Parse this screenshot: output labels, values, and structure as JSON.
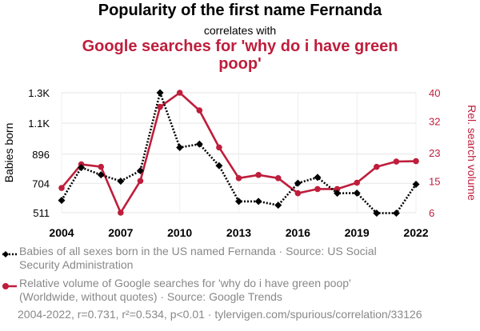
{
  "chart_data": {
    "type": "line",
    "title": "Popularity of the first name Fernanda",
    "subtitle": "correlates with",
    "title2": "Google searches for 'why do i have green poop'",
    "x": [
      2004,
      2005,
      2006,
      2007,
      2008,
      2009,
      2010,
      2011,
      2012,
      2013,
      2014,
      2015,
      2016,
      2017,
      2018,
      2019,
      2020,
      2021,
      2022
    ],
    "x_ticks": [
      "2004",
      "2007",
      "2010",
      "2013",
      "2016",
      "2019",
      "2022"
    ],
    "left_axis": {
      "label": "Babies born",
      "ticks": [
        "511",
        "704",
        "896",
        "1.1K",
        "1.3K"
      ],
      "tick_values": [
        511,
        704,
        896,
        1100,
        1300
      ],
      "range": [
        511,
        1300
      ]
    },
    "right_axis": {
      "label": "Rel. search volume",
      "ticks": [
        "6",
        "15",
        "23",
        "32",
        "40"
      ],
      "tick_values": [
        6,
        15,
        23,
        32,
        40
      ],
      "range": [
        6,
        40
      ]
    },
    "series": [
      {
        "name": "Babies of all sexes born in the US named Fernanda · Source: US Social Security Administration",
        "axis": "left",
        "color": "#000000",
        "style": "dotted",
        "marker": "diamond",
        "values": [
          592,
          808,
          760,
          718,
          787,
          1300,
          940,
          962,
          820,
          585,
          585,
          560,
          705,
          743,
          639,
          640,
          508,
          508,
          698
        ]
      },
      {
        "name": "Relative volume of Google searches for 'why do i have green poop' (Worldwide, without quotes) · Source: Google Trends",
        "axis": "right",
        "color": "#be1e3c",
        "style": "solid",
        "marker": "circle",
        "values": [
          13,
          19.7,
          19,
          6,
          15,
          36,
          40,
          35,
          24.5,
          15.8,
          16.7,
          15.8,
          11.5,
          12.7,
          12.7,
          14.5,
          19,
          20.5,
          20.6
        ]
      }
    ],
    "grid": true,
    "footer": "2004-2022, r=0.731, r²=0.534, p<0.01 · tylervigen.com/spurious/correlation/33126"
  }
}
